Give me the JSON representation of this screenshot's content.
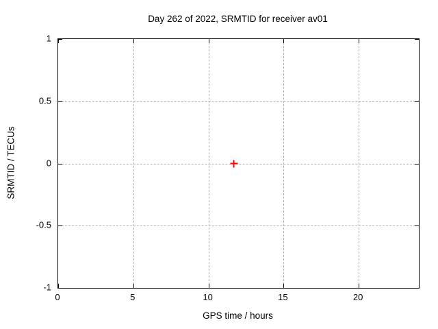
{
  "chart_data": {
    "type": "scatter",
    "title": "Day 262 of 2022, SRMTID for receiver av01",
    "xlabel": "GPS time / hours",
    "ylabel": "SRMTID / TECUs",
    "xlim": [
      0,
      24
    ],
    "ylim": [
      -1,
      1
    ],
    "x_ticks": [
      0,
      5,
      10,
      15,
      20
    ],
    "y_ticks": [
      -1,
      -0.5,
      0,
      0.5,
      1
    ],
    "grid": true,
    "grid_color": "#b0b0b0",
    "border_color": "#000000",
    "legend_position": "none",
    "series": [
      {
        "name": "SRMTID",
        "marker": "plus",
        "color": "#ff0000",
        "points": [
          {
            "x": 11.7,
            "y": 0
          }
        ]
      }
    ]
  }
}
